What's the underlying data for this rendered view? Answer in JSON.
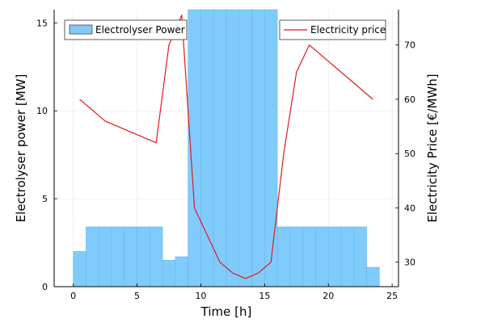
{
  "chart_data": {
    "type": "bar+line",
    "x_axis": {
      "label": "Time [h]",
      "range": [
        -1.5,
        25.5
      ],
      "ticks": [
        0,
        5,
        10,
        15,
        20,
        25
      ]
    },
    "y_left": {
      "label": "Electrolyser power [MW]",
      "range": [
        0,
        15.75
      ],
      "ticks": [
        0,
        5,
        10,
        15
      ]
    },
    "y_right": {
      "label": "Electricity Price [€/MWh]",
      "range": [
        25.5,
        76.5
      ],
      "ticks": [
        30,
        40,
        50,
        60,
        70
      ]
    },
    "series": [
      {
        "name": "Electrolyser Power",
        "type": "bar",
        "axis": "left",
        "color": "#7fccfc",
        "edge_color": "#6bb4e3",
        "x": [
          0.5,
          1.5,
          2.5,
          3.5,
          4.5,
          5.5,
          6.5,
          7.5,
          8.5,
          9.5,
          10.5,
          11.5,
          12.5,
          13.5,
          14.5,
          15.5,
          16.5,
          17.5,
          18.5,
          19.5,
          20.5,
          21.5,
          22.5,
          23.5
        ],
        "values": [
          2.0,
          3.4,
          3.4,
          3.4,
          3.4,
          3.4,
          3.4,
          1.5,
          1.7,
          15.75,
          15.75,
          15.75,
          15.75,
          15.75,
          15.75,
          15.75,
          3.4,
          3.4,
          3.4,
          3.4,
          3.4,
          3.4,
          3.4,
          1.1
        ]
      },
      {
        "name": "Electricity price",
        "type": "line",
        "axis": "right",
        "color": "#e01a1a",
        "x": [
          0.5,
          2.5,
          6.5,
          7.5,
          8.5,
          9.5,
          10.5,
          11.5,
          12.5,
          13.5,
          14.5,
          15.5,
          16.5,
          17.5,
          18.5,
          23.5
        ],
        "values": [
          60,
          56,
          52,
          70,
          75.5,
          40,
          35,
          30,
          28,
          27,
          28,
          30,
          50,
          65,
          70,
          60
        ]
      }
    ],
    "legend": {
      "left": {
        "label": "Electrolyser Power",
        "position": "top-left"
      },
      "right": {
        "label": "Electricity price",
        "position": "top-right"
      }
    },
    "grid": true
  }
}
